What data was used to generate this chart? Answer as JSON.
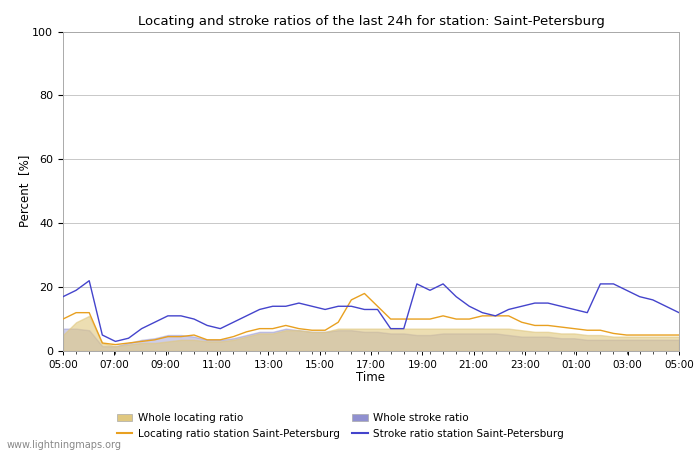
{
  "title": "Locating and stroke ratios of the last 24h for station: Saint-Petersburg",
  "xlabel": "Time",
  "ylabel": "Percent  [%]",
  "watermark": "www.lightningmaps.org",
  "ylim": [
    0,
    100
  ],
  "yticks": [
    0,
    20,
    40,
    60,
    80,
    100
  ],
  "xtick_labels": [
    "05:00",
    "07:00",
    "09:00",
    "11:00",
    "13:00",
    "15:00",
    "17:00",
    "19:00",
    "21:00",
    "23:00",
    "01:00",
    "03:00",
    "05:00"
  ],
  "bg_color": "#ffffff",
  "grid_color": "#c8c8c8",
  "locating_line_color": "#e8a020",
  "stroke_line_color": "#4444cc",
  "locating_fill_color": "#e0c880",
  "locating_fill_alpha": 0.6,
  "stroke_fill_color": "#9090d0",
  "stroke_fill_alpha": 0.45,
  "locating_whole": [
    5,
    9,
    11,
    2.5,
    1.5,
    2,
    2.5,
    2.5,
    3,
    3.5,
    3.5,
    3,
    3,
    3.5,
    4.5,
    5.5,
    5.5,
    6.5,
    6.5,
    6,
    6,
    7,
    7,
    7,
    7,
    7,
    7,
    7,
    7,
    7,
    7,
    7,
    7,
    7,
    7,
    6.5,
    6,
    6,
    5.5,
    5.5,
    5,
    5,
    4.5,
    4.5,
    4.5,
    4.5,
    4.5,
    4.5
  ],
  "locating_station": [
    10,
    12,
    12,
    2.5,
    2,
    2.5,
    3,
    3.5,
    4.5,
    4.5,
    5,
    3.5,
    3.5,
    4.5,
    6,
    7,
    7,
    8,
    7,
    6.5,
    6.5,
    9,
    16,
    18,
    14,
    10,
    10,
    10,
    10,
    11,
    10,
    10,
    11,
    11,
    11,
    9,
    8,
    8,
    7.5,
    7,
    6.5,
    6.5,
    5.5,
    5,
    5,
    5,
    5,
    5
  ],
  "stroke_whole": [
    7,
    7,
    6.5,
    1.5,
    1.5,
    2.5,
    3.5,
    4,
    5,
    5,
    4.5,
    3.5,
    3.5,
    4,
    5,
    6,
    6,
    7,
    6.5,
    6,
    6,
    6.5,
    6.5,
    6,
    6,
    5.5,
    5.5,
    5,
    5,
    5.5,
    5.5,
    5.5,
    5.5,
    5.5,
    5,
    4.5,
    4.5,
    4.5,
    4,
    4,
    3.5,
    3.5,
    3.5,
    3.5,
    3.5,
    3.5,
    3.5,
    3.5
  ],
  "stroke_station": [
    17,
    19,
    22,
    5,
    3,
    4,
    7,
    9,
    11,
    11,
    10,
    8,
    7,
    9,
    11,
    13,
    14,
    14,
    15,
    14,
    13,
    14,
    14,
    13,
    13,
    7,
    7,
    21,
    19,
    21,
    17,
    14,
    12,
    11,
    13,
    14,
    15,
    15,
    14,
    13,
    12,
    21,
    21,
    19,
    17,
    16,
    14,
    12
  ],
  "n_points": 48
}
